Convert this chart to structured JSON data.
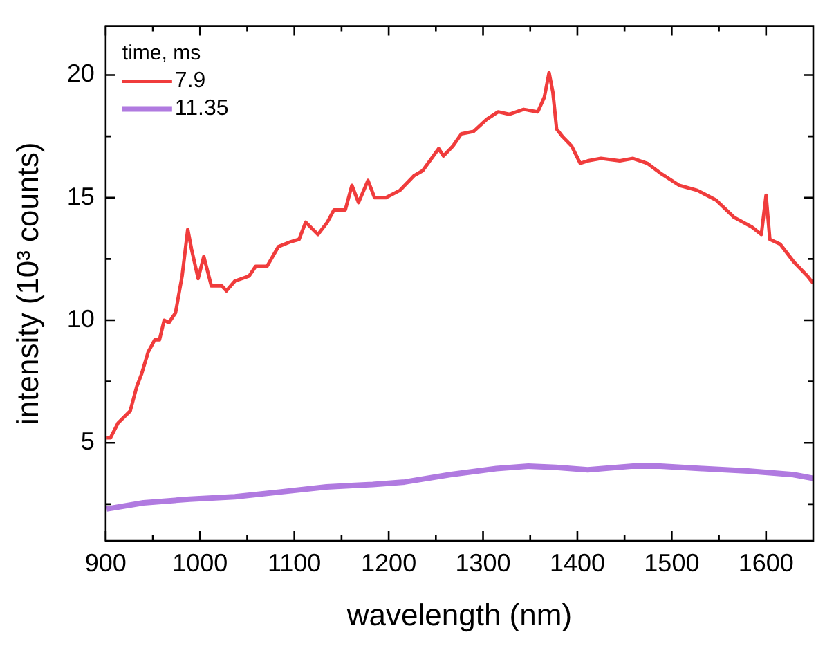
{
  "chart_data": {
    "type": "line",
    "xlabel": "wavelength (nm)",
    "ylabel": "intensity (10³ counts)",
    "legend_title": "time, ms",
    "legend": "top left",
    "grid": false,
    "marker": "none",
    "line_style": "solid",
    "xlim": [
      900,
      1650
    ],
    "xticks": [
      900,
      {
        "value": 950,
        "label": null
      },
      1000,
      {
        "value": 1050,
        "label": null
      },
      1100,
      {
        "value": 1150,
        "label": null
      },
      1200,
      {
        "value": 1250,
        "label": null
      },
      1300,
      {
        "value": 1350,
        "label": null
      },
      1400,
      {
        "value": 1450,
        "label": null
      },
      1500,
      {
        "value": 1550,
        "label": null
      },
      1600
    ],
    "ylim": [
      1,
      22
    ],
    "yticks": [
      {
        "value": 2.5,
        "label": null
      },
      5,
      {
        "value": 7.5,
        "label": null
      },
      10,
      {
        "value": 12.5,
        "label": null
      },
      15,
      {
        "value": 17.5,
        "label": null
      },
      20
    ],
    "series": [
      {
        "name": "7.9",
        "color": "#f03c3c",
        "x": [
          901,
          905,
          913,
          926,
          933,
          938,
          945,
          952,
          957,
          962,
          967,
          974,
          981,
          987,
          991,
          998,
          1004,
          1012,
          1023,
          1028,
          1037,
          1052,
          1059,
          1071,
          1083,
          1096,
          1105,
          1112,
          1125,
          1135,
          1142,
          1154,
          1161,
          1168,
          1178,
          1185,
          1197,
          1212,
          1227,
          1236,
          1253,
          1258,
          1268,
          1277,
          1290,
          1304,
          1316,
          1328,
          1343,
          1358,
          1365,
          1370,
          1374,
          1378,
          1384,
          1394,
          1403,
          1411,
          1425,
          1445,
          1459,
          1474,
          1488,
          1508,
          1527,
          1547,
          1566,
          1585,
          1595,
          1600,
          1604,
          1615,
          1629,
          1644,
          1650
        ],
        "values": [
          5.2,
          5.2,
          5.8,
          6.3,
          7.3,
          7.8,
          8.7,
          9.2,
          9.2,
          10.0,
          9.9,
          10.3,
          11.8,
          13.7,
          12.9,
          11.7,
          12.6,
          11.4,
          11.4,
          11.2,
          11.6,
          11.8,
          12.2,
          12.2,
          13.0,
          13.2,
          13.3,
          14.0,
          13.5,
          14.0,
          14.5,
          14.5,
          15.5,
          14.8,
          15.7,
          15.0,
          15.0,
          15.3,
          15.9,
          16.1,
          17.0,
          16.7,
          17.1,
          17.6,
          17.7,
          18.2,
          18.5,
          18.4,
          18.6,
          18.5,
          19.1,
          20.1,
          19.3,
          17.8,
          17.5,
          17.1,
          16.4,
          16.5,
          16.6,
          16.5,
          16.6,
          16.4,
          16.0,
          15.5,
          15.3,
          14.9,
          14.2,
          13.8,
          13.5,
          15.1,
          13.3,
          13.1,
          12.4,
          11.8,
          11.5
        ]
      },
      {
        "name": "11.35",
        "color": "#b07ae0",
        "x": [
          901,
          940,
          989,
          1037,
          1086,
          1134,
          1183,
          1217,
          1265,
          1314,
          1348,
          1377,
          1411,
          1459,
          1488,
          1532,
          1581,
          1629,
          1650
        ],
        "values": [
          2.3,
          2.55,
          2.7,
          2.8,
          3.0,
          3.2,
          3.3,
          3.4,
          3.7,
          3.95,
          4.05,
          4.0,
          3.9,
          4.05,
          4.05,
          3.95,
          3.85,
          3.7,
          3.55
        ]
      }
    ]
  }
}
